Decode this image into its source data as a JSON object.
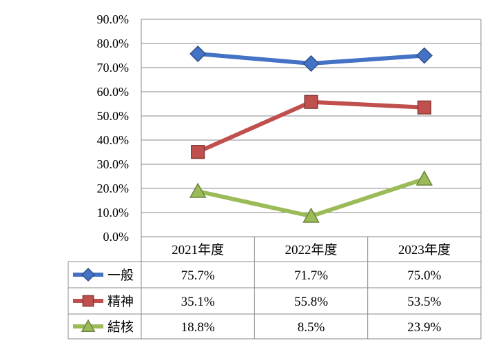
{
  "chart_data": {
    "type": "line",
    "categories": [
      "2021年度",
      "2022年度",
      "2023年度"
    ],
    "series": [
      {
        "name": "一般",
        "values": [
          75.7,
          71.7,
          75.0
        ],
        "labels": [
          "75.7%",
          "71.7%",
          "75.0%"
        ],
        "color": "#4472C4",
        "marker": "diamond"
      },
      {
        "name": "精神",
        "values": [
          35.1,
          55.8,
          53.5
        ],
        "labels": [
          "35.1%",
          "55.8%",
          "53.5%"
        ],
        "color": "#C0504D",
        "marker": "square"
      },
      {
        "name": "結核",
        "values": [
          18.8,
          8.5,
          23.9
        ],
        "labels": [
          "18.8%",
          "8.5%",
          "23.9%"
        ],
        "color": "#9BBB59",
        "marker": "triangle"
      }
    ],
    "yticks": [
      "0.0%",
      "10.0%",
      "20.0%",
      "30.0%",
      "40.0%",
      "50.0%",
      "60.0%",
      "70.0%",
      "80.0%",
      "90.0%"
    ],
    "ylim": [
      0,
      90
    ],
    "grid": true,
    "legend": "data-table",
    "title": "",
    "xlabel": "",
    "ylabel": ""
  }
}
